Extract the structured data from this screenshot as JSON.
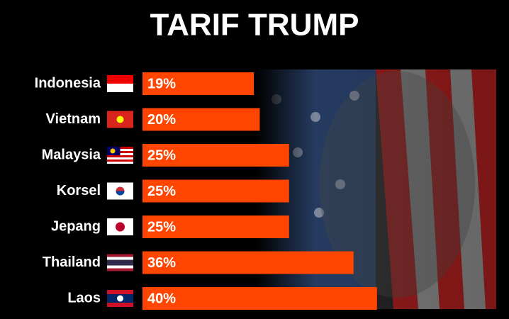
{
  "chart_data": {
    "type": "bar",
    "title": "TARIF TRUMP",
    "categories": [
      "Indonesia",
      "Vietnam",
      "Malaysia",
      "Korsel",
      "Jepang",
      "Thailand",
      "Laos"
    ],
    "values": [
      19,
      20,
      25,
      25,
      25,
      36,
      40
    ],
    "value_labels": [
      "19%",
      "20%",
      "25%",
      "25%",
      "25%",
      "36%",
      "40%"
    ],
    "color": "#ff4500"
  }
}
